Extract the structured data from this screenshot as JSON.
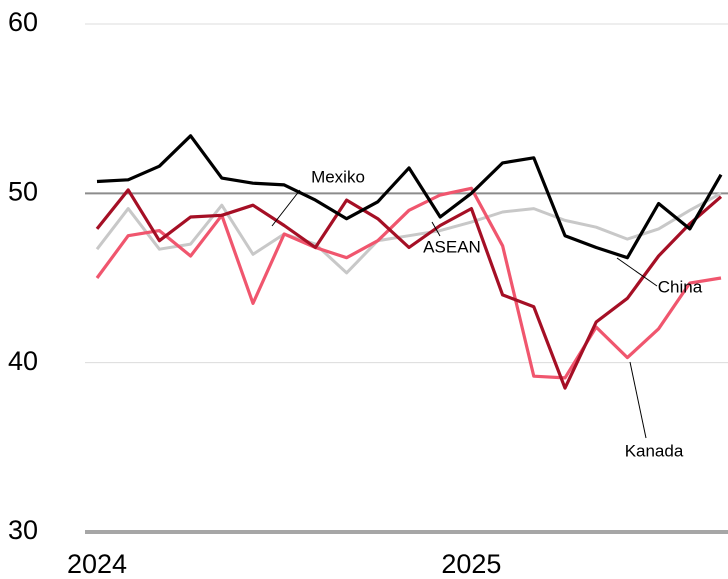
{
  "chart_data": {
    "type": "line",
    "categories": [
      "2024",
      null,
      null,
      null,
      null,
      null,
      null,
      null,
      null,
      null,
      null,
      null,
      "2025",
      null,
      null,
      null,
      null,
      null,
      null,
      null,
      null
    ],
    "series": [
      {
        "name": "China",
        "color": "#000000",
        "values": [
          50.7,
          50.8,
          51.6,
          53.4,
          50.9,
          50.6,
          50.5,
          49.6,
          48.5,
          49.5,
          51.5,
          48.6,
          50.0,
          51.8,
          52.1,
          47.5,
          46.8,
          46.2,
          49.4,
          47.9,
          51.1
        ]
      },
      {
        "name": "Mexiko",
        "color": "#a50f25",
        "values": [
          47.9,
          50.2,
          47.2,
          48.6,
          48.7,
          49.3,
          48.1,
          46.8,
          49.6,
          48.5,
          46.8,
          48.1,
          49.1,
          44.0,
          43.3,
          38.5,
          42.4,
          43.8,
          46.3,
          48.2,
          49.8
        ]
      },
      {
        "name": "ASEAN",
        "color": "#c8c8c8",
        "values": [
          46.7,
          49.1,
          46.7,
          47.0,
          49.3,
          46.4,
          47.6,
          47.0,
          45.3,
          47.2,
          47.5,
          47.8,
          48.3,
          48.9,
          49.1,
          48.4,
          48.0,
          47.3,
          47.9,
          49.0,
          50.0
        ]
      },
      {
        "name": "Kanada",
        "color": "#f0566e",
        "values": [
          45.0,
          47.5,
          47.8,
          46.3,
          48.7,
          43.5,
          47.6,
          46.8,
          46.2,
          47.2,
          49.0,
          49.9,
          50.3,
          46.9,
          39.2,
          39.1,
          42.1,
          40.3,
          42.0,
          44.7,
          45.0
        ]
      }
    ],
    "ylim": [
      30,
      60
    ],
    "yticks": [
      30,
      40,
      50,
      60
    ],
    "grid": true,
    "reference_line": 50
  }
}
